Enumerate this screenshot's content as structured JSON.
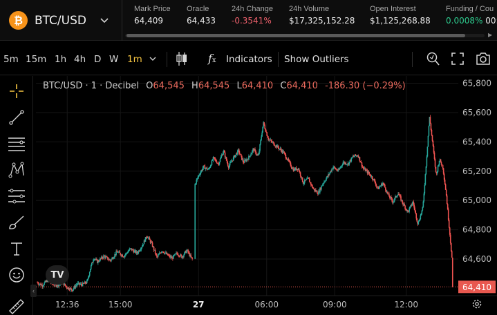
{
  "market": {
    "pair": "BTC/USD",
    "logo_glyph": "₿",
    "logo_color": "#f7931a"
  },
  "stats": {
    "mark_price": {
      "label": "Mark Price",
      "value": "64,409"
    },
    "oracle": {
      "label": "Oracle",
      "value": "64,433"
    },
    "change_24h": {
      "label": "24h Change",
      "value": "-0.3541%"
    },
    "volume_24h": {
      "label": "24h Volume",
      "value": "$17,325,152.28"
    },
    "open_interest": {
      "label": "Open Interest",
      "value": "$1,125,268.88"
    },
    "funding": {
      "label": "Funding / Cou",
      "value": "0.0008%",
      "extra": "00:"
    }
  },
  "toolbar": {
    "timeframes": [
      "5m",
      "15m",
      "1h",
      "4h",
      "D",
      "W",
      "1m"
    ],
    "active_timeframe": "1m",
    "indicators_label": "Indicators",
    "outliers_label": "Show Outliers"
  },
  "sidebar": {
    "tools": [
      "crosshair-icon",
      "trend-line-icon",
      "horizontal-lines-icon",
      "pattern-icon",
      "fib-icon",
      "brush-icon",
      "text-icon",
      "emoji-icon",
      "ruler-icon"
    ]
  },
  "legend": {
    "name": "BTC/USD · 1 · Decibel",
    "o_label": "O",
    "o": "64,545",
    "h_label": "H",
    "h": "64,545",
    "l_label": "L",
    "l": "64,410",
    "c_label": "C",
    "c": "64,410",
    "change": "-186.30 (−0.29%)"
  },
  "logo_text": "TV",
  "colors": {
    "up": "#26a69a",
    "down": "#ef5350",
    "accent": "#f5c542",
    "price_line": "#e8584f"
  },
  "chart_data": {
    "type": "candlestick",
    "title": "BTC/USD · 1 · Decibel",
    "current_price": 64410,
    "current_price_label": "64,410",
    "ylim": [
      64350,
      65850
    ],
    "y_ticks": [
      65800,
      65600,
      65400,
      65200,
      65000,
      64800,
      64600
    ],
    "y_tick_labels": [
      "65,800",
      "65,600",
      "65,400",
      "65,200",
      "65,000",
      "64,800",
      "64,600"
    ],
    "x_ticks": [
      "12:36",
      "15:00",
      "27",
      "06:00",
      "09:00",
      "12:00"
    ],
    "grid": true,
    "price_path": [
      [
        0,
        64440
      ],
      [
        3,
        64420
      ],
      [
        6,
        64455
      ],
      [
        9,
        64430
      ],
      [
        12,
        64420
      ],
      [
        15,
        64440
      ],
      [
        18,
        64405
      ],
      [
        21,
        64390
      ],
      [
        24,
        64430
      ],
      [
        27,
        64425
      ],
      [
        30,
        64445
      ],
      [
        32,
        64540
      ],
      [
        34,
        64610
      ],
      [
        36,
        64580
      ],
      [
        40,
        64620
      ],
      [
        44,
        64590
      ],
      [
        48,
        64650
      ],
      [
        52,
        64620
      ],
      [
        56,
        64670
      ],
      [
        60,
        64640
      ],
      [
        63,
        64690
      ],
      [
        66,
        64760
      ],
      [
        69,
        64700
      ],
      [
        72,
        64610
      ],
      [
        75,
        64660
      ],
      [
        78,
        64630
      ],
      [
        81,
        64605
      ],
      [
        84,
        64640
      ],
      [
        87,
        64615
      ],
      [
        90,
        64660
      ],
      [
        93,
        64600
      ],
      [
        94,
        64600
      ],
      [
        94.5,
        65100
      ],
      [
        97,
        65170
      ],
      [
        100,
        65230
      ],
      [
        103,
        65210
      ],
      [
        106,
        65290
      ],
      [
        109,
        65250
      ],
      [
        112,
        65340
      ],
      [
        115,
        65230
      ],
      [
        118,
        65290
      ],
      [
        121,
        65340
      ],
      [
        124,
        65260
      ],
      [
        127,
        65290
      ],
      [
        130,
        65350
      ],
      [
        133,
        65300
      ],
      [
        136,
        65530
      ],
      [
        139,
        65420
      ],
      [
        142,
        65390
      ],
      [
        145,
        65360
      ],
      [
        148,
        65330
      ],
      [
        151,
        65270
      ],
      [
        154,
        65210
      ],
      [
        157,
        65220
      ],
      [
        160,
        65120
      ],
      [
        163,
        65150
      ],
      [
        166,
        65080
      ],
      [
        169,
        65050
      ],
      [
        172,
        65120
      ],
      [
        175,
        65170
      ],
      [
        178,
        65230
      ],
      [
        181,
        65200
      ],
      [
        184,
        65260
      ],
      [
        187,
        65250
      ],
      [
        190,
        65300
      ],
      [
        193,
        65310
      ],
      [
        196,
        65220
      ],
      [
        199,
        65190
      ],
      [
        202,
        65150
      ],
      [
        205,
        65080
      ],
      [
        208,
        65120
      ],
      [
        211,
        65040
      ],
      [
        214,
        64990
      ],
      [
        217,
        65050
      ],
      [
        220,
        64980
      ],
      [
        223,
        64920
      ],
      [
        226,
        64990
      ],
      [
        229,
        64840
      ],
      [
        232,
        64950
      ],
      [
        234,
        65250
      ],
      [
        236,
        65570
      ],
      [
        238,
        65380
      ],
      [
        240,
        65170
      ],
      [
        242,
        65280
      ],
      [
        244,
        65230
      ],
      [
        246,
        65050
      ],
      [
        248,
        64800
      ],
      [
        250,
        64540
      ]
    ]
  }
}
